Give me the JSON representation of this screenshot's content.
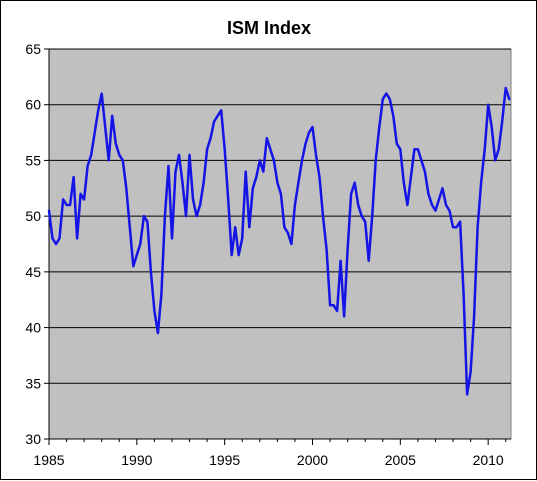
{
  "chart_data": {
    "type": "line",
    "title": "ISM Index",
    "xlabel": "",
    "ylabel": "",
    "xlim": [
      1985,
      2011.3
    ],
    "ylim": [
      30,
      65
    ],
    "x_ticks": [
      "1985",
      "1990",
      "1995",
      "2000",
      "2005",
      "2010"
    ],
    "y_ticks": [
      "30",
      "35",
      "40",
      "45",
      "50",
      "55",
      "60",
      "65"
    ],
    "grid": "horizontal",
    "legend": "none",
    "colors": {
      "plot_bg": "#c0c0c0",
      "line": "#1414e6",
      "gridline": "#000000"
    },
    "series": [
      {
        "x": [
          1985.0,
          1985.2,
          1985.4,
          1985.6,
          1985.8,
          1986.0,
          1986.2,
          1986.4,
          1986.6,
          1986.8,
          1987.0,
          1987.2,
          1987.4,
          1987.6,
          1987.8,
          1988.0,
          1988.2,
          1988.4,
          1988.6,
          1988.8,
          1989.0,
          1989.2,
          1989.4,
          1989.6,
          1989.8,
          1990.0,
          1990.2,
          1990.4,
          1990.6,
          1990.8,
          1991.0,
          1991.2,
          1991.4,
          1991.6,
          1991.8,
          1992.0,
          1992.2,
          1992.4,
          1992.6,
          1992.8,
          1993.0,
          1993.2,
          1993.4,
          1993.6,
          1993.8,
          1994.0,
          1994.2,
          1994.4,
          1994.6,
          1994.8,
          1995.0,
          1995.2,
          1995.4,
          1995.6,
          1995.8,
          1996.0,
          1996.2,
          1996.4,
          1996.6,
          1996.8,
          1997.0,
          1997.2,
          1997.4,
          1997.6,
          1997.8,
          1998.0,
          1998.2,
          1998.4,
          1998.6,
          1998.8,
          1999.0,
          1999.2,
          1999.4,
          1999.6,
          1999.8,
          2000.0,
          2000.2,
          2000.4,
          2000.6,
          2000.8,
          2001.0,
          2001.2,
          2001.4,
          2001.6,
          2001.8,
          2002.0,
          2002.2,
          2002.4,
          2002.6,
          2002.8,
          2003.0,
          2003.2,
          2003.4,
          2003.6,
          2003.8,
          2004.0,
          2004.2,
          2004.4,
          2004.6,
          2004.8,
          2005.0,
          2005.2,
          2005.4,
          2005.6,
          2005.8,
          2006.0,
          2006.2,
          2006.4,
          2006.6,
          2006.8,
          2007.0,
          2007.2,
          2007.4,
          2007.6,
          2007.8,
          2008.0,
          2008.2,
          2008.4,
          2008.6,
          2008.8,
          2009.0,
          2009.2,
          2009.4,
          2009.6,
          2009.8,
          2010.0,
          2010.2,
          2010.4,
          2010.6,
          2010.8,
          2011.0,
          2011.2
        ],
        "y": [
          50.5,
          48.0,
          47.5,
          48.0,
          51.5,
          51.0,
          51.0,
          53.5,
          48.0,
          52.0,
          51.5,
          54.5,
          55.5,
          57.5,
          59.5,
          61.0,
          58.0,
          55.0,
          59.0,
          56.5,
          55.5,
          55.0,
          52.5,
          49.0,
          45.5,
          46.5,
          47.5,
          50.0,
          49.5,
          45.0,
          41.5,
          39.5,
          43.0,
          50.0,
          54.5,
          48.0,
          54.0,
          55.5,
          53.0,
          50.0,
          55.5,
          51.5,
          50.0,
          51.0,
          53.0,
          56.0,
          57.0,
          58.5,
          59.0,
          59.5,
          56.0,
          51.5,
          46.5,
          49.0,
          46.5,
          48.0,
          54.0,
          49.0,
          52.5,
          53.5,
          55.0,
          54.0,
          57.0,
          56.0,
          55.0,
          53.0,
          52.0,
          49.0,
          48.5,
          47.5,
          51.0,
          53.0,
          55.0,
          56.5,
          57.5,
          58.0,
          55.5,
          53.5,
          50.0,
          47.0,
          42.0,
          42.0,
          41.5,
          46.0,
          41.0,
          47.0,
          52.0,
          53.0,
          51.0,
          50.0,
          49.5,
          46.0,
          50.0,
          55.0,
          58.0,
          60.5,
          61.0,
          60.5,
          59.0,
          56.5,
          56.0,
          53.0,
          51.0,
          53.5,
          56.0,
          56.0,
          55.0,
          54.0,
          52.0,
          51.0,
          50.5,
          51.5,
          52.5,
          51.0,
          50.5,
          49.0,
          49.0,
          49.5,
          43.0,
          34.0,
          36.0,
          41.0,
          49.0,
          53.0,
          56.0,
          60.0,
          58.0,
          55.0,
          56.0,
          58.5,
          61.5,
          60.5
        ]
      }
    ]
  }
}
